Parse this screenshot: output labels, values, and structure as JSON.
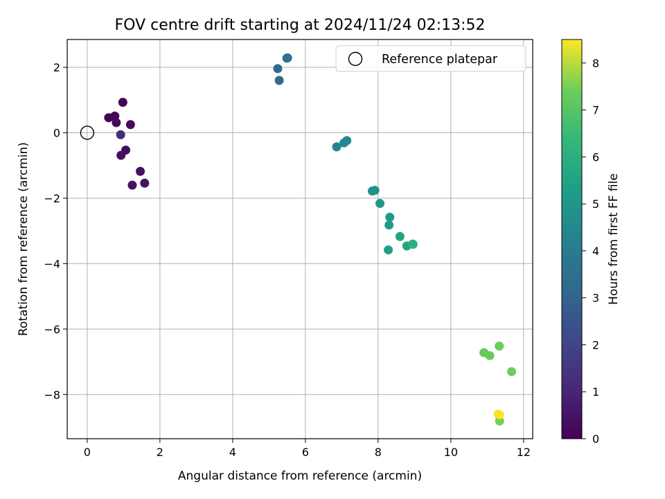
{
  "chart_data": {
    "type": "scatter",
    "title": "FOV centre drift starting at 2024/11/24 02:13:52",
    "xlabel": "Angular distance from reference (arcmin)",
    "ylabel": "Rotation from reference (arcmin)",
    "xlim": [
      -0.55,
      12.25
    ],
    "ylim": [
      -9.35,
      2.85
    ],
    "xticks": [
      0,
      2,
      4,
      6,
      8,
      10,
      12
    ],
    "yticks": [
      2,
      0,
      -2,
      -4,
      -6,
      -8
    ],
    "xtick_labels": [
      "0",
      "2",
      "4",
      "6",
      "8",
      "10",
      "12"
    ],
    "ytick_labels": [
      "2",
      "0",
      "−2",
      "−4",
      "−6",
      "−8"
    ],
    "grid": true,
    "colormap": "viridis",
    "colorbar": {
      "label": "Hours from first FF file",
      "range": [
        0,
        8.5
      ],
      "ticks": [
        0,
        1,
        2,
        3,
        4,
        5,
        6,
        7,
        8
      ],
      "tick_labels": [
        "0",
        "1",
        "2",
        "3",
        "4",
        "5",
        "6",
        "7",
        "8"
      ]
    },
    "reference": {
      "name": "Reference platepar",
      "x": 0,
      "y": 0,
      "marker": "hollow-circle"
    },
    "legend": {
      "position": "top-right",
      "entries": [
        "Reference platepar"
      ]
    },
    "points": [
      {
        "x": 0.98,
        "y": 0.93,
        "hours": 0.05
      },
      {
        "x": 0.59,
        "y": 0.46,
        "hours": 0.1
      },
      {
        "x": 0.76,
        "y": 0.51,
        "hours": 0.15
      },
      {
        "x": 0.8,
        "y": 0.31,
        "hours": 0.2
      },
      {
        "x": 1.19,
        "y": 0.25,
        "hours": 0.25
      },
      {
        "x": 1.06,
        "y": -0.53,
        "hours": 0.3
      },
      {
        "x": 0.93,
        "y": -0.69,
        "hours": 0.35
      },
      {
        "x": 1.46,
        "y": -1.18,
        "hours": 0.4
      },
      {
        "x": 1.58,
        "y": -1.54,
        "hours": 0.45
      },
      {
        "x": 1.24,
        "y": -1.6,
        "hours": 0.5
      },
      {
        "x": 0.92,
        "y": -0.06,
        "hours": 1.2
      },
      {
        "x": 5.24,
        "y": 1.96,
        "hours": 3.3
      },
      {
        "x": 5.28,
        "y": 1.6,
        "hours": 3.4
      },
      {
        "x": 5.49,
        "y": 2.28,
        "hours": 3.5
      },
      {
        "x": 5.51,
        "y": 2.29,
        "hours": 3.6
      },
      {
        "x": 6.86,
        "y": -0.43,
        "hours": 4.4
      },
      {
        "x": 7.06,
        "y": -0.31,
        "hours": 4.45
      },
      {
        "x": 7.14,
        "y": -0.24,
        "hours": 4.5
      },
      {
        "x": 7.84,
        "y": -1.78,
        "hours": 4.8
      },
      {
        "x": 7.91,
        "y": -1.76,
        "hours": 4.85
      },
      {
        "x": 8.05,
        "y": -2.16,
        "hours": 5.0
      },
      {
        "x": 8.32,
        "y": -2.58,
        "hours": 5.2
      },
      {
        "x": 8.3,
        "y": -2.82,
        "hours": 5.25
      },
      {
        "x": 8.28,
        "y": -3.58,
        "hours": 5.35
      },
      {
        "x": 8.6,
        "y": -3.17,
        "hours": 5.5
      },
      {
        "x": 8.79,
        "y": -3.46,
        "hours": 5.6
      },
      {
        "x": 8.95,
        "y": -3.4,
        "hours": 5.9
      },
      {
        "x": 8.96,
        "y": -3.41,
        "hours": 6.0
      },
      {
        "x": 10.91,
        "y": -6.72,
        "hours": 7.25
      },
      {
        "x": 11.07,
        "y": -6.81,
        "hours": 7.3
      },
      {
        "x": 11.33,
        "y": -6.52,
        "hours": 7.35
      },
      {
        "x": 11.67,
        "y": -7.3,
        "hours": 7.4
      },
      {
        "x": 11.34,
        "y": -8.81,
        "hours": 7.5
      },
      {
        "x": 11.3,
        "y": -8.6,
        "hours": 8.4
      },
      {
        "x": 11.34,
        "y": -8.62,
        "hours": 8.45
      }
    ]
  }
}
